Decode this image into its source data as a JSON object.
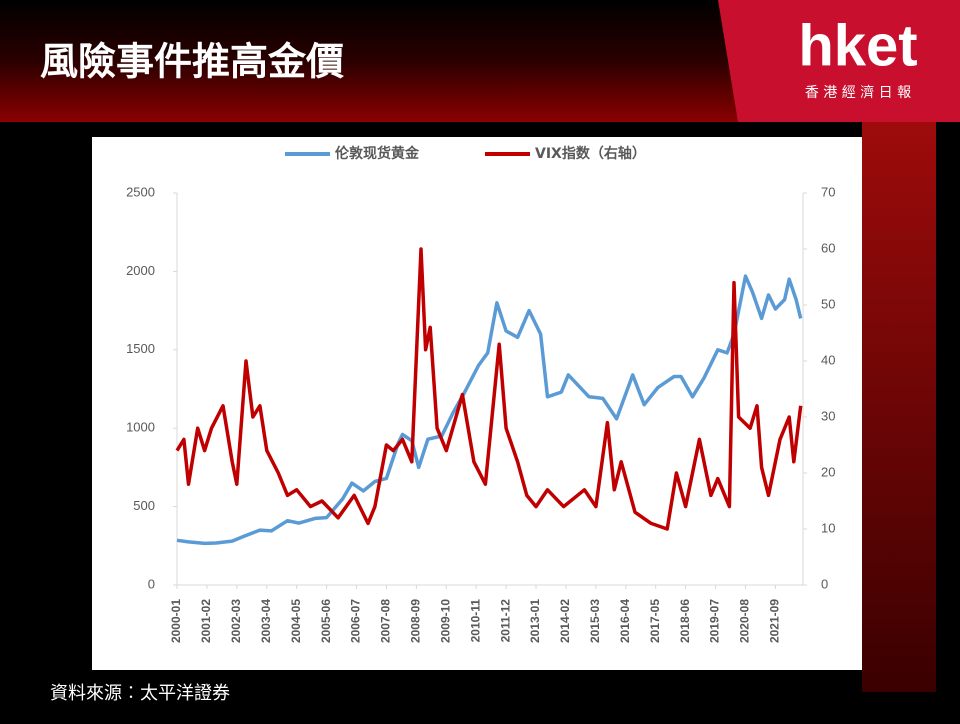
{
  "header": {
    "title": "風險事件推高金價",
    "logo": "hket",
    "logo_sub": "香 港 經 濟 日 報"
  },
  "source": "資料來源︰太平洋證券",
  "chart_data": {
    "type": "line",
    "xlim": [
      "2000-01",
      "2022-09"
    ],
    "xticks": [
      "2000-01",
      "2001-02",
      "2002-03",
      "2003-04",
      "2004-05",
      "2005-06",
      "2006-07",
      "2007-08",
      "2008-09",
      "2009-10",
      "2010-11",
      "2011-12",
      "2013-01",
      "2014-02",
      "2015-03",
      "2016-04",
      "2017-05",
      "2018-06",
      "2019-07",
      "2020-08",
      "2021-09"
    ],
    "ylim": [
      0,
      2500
    ],
    "yticks": [
      0,
      500,
      1000,
      1500,
      2000,
      2500
    ],
    "y2lim": [
      0,
      70
    ],
    "y2ticks": [
      0,
      10,
      20,
      30,
      40,
      50,
      60,
      70
    ],
    "grid": false,
    "legend": "top",
    "series": [
      {
        "name": "伦敦现货黄金",
        "color": "#5b9bd5",
        "axis": "y",
        "x": [
          "2000-01",
          "2000-06",
          "2001-01",
          "2001-06",
          "2002-01",
          "2002-06",
          "2003-01",
          "2003-06",
          "2004-01",
          "2004-06",
          "2005-01",
          "2005-06",
          "2006-01",
          "2006-05",
          "2006-10",
          "2007-03",
          "2007-08",
          "2008-01",
          "2008-03",
          "2008-07",
          "2008-10",
          "2009-02",
          "2009-08",
          "2010-01",
          "2010-06",
          "2010-12",
          "2011-04",
          "2011-08",
          "2011-12",
          "2012-05",
          "2012-10",
          "2013-03",
          "2013-06",
          "2013-12",
          "2014-03",
          "2014-12",
          "2015-06",
          "2015-12",
          "2016-07",
          "2016-12",
          "2017-06",
          "2018-01",
          "2018-04",
          "2018-09",
          "2019-02",
          "2019-08",
          "2019-12",
          "2020-03",
          "2020-08",
          "2020-11",
          "2021-03",
          "2021-06",
          "2021-09",
          "2022-01",
          "2022-03",
          "2022-06",
          "2022-08"
        ],
        "values": [
          285,
          275,
          265,
          268,
          280,
          310,
          350,
          345,
          410,
          395,
          425,
          430,
          550,
          650,
          600,
          660,
          680,
          900,
          960,
          920,
          750,
          930,
          950,
          1100,
          1230,
          1400,
          1480,
          1800,
          1620,
          1580,
          1750,
          1600,
          1200,
          1230,
          1340,
          1200,
          1190,
          1060,
          1340,
          1150,
          1260,
          1330,
          1330,
          1200,
          1320,
          1500,
          1480,
          1600,
          1970,
          1870,
          1700,
          1850,
          1760,
          1820,
          1950,
          1820,
          1700
        ]
      },
      {
        "name": "VIX指数（右轴）",
        "color": "#c00000",
        "axis": "y2",
        "x": [
          "2000-01",
          "2000-04",
          "2000-06",
          "2000-10",
          "2001-01",
          "2001-04",
          "2001-09",
          "2002-01",
          "2002-03",
          "2002-07",
          "2002-10",
          "2003-01",
          "2003-04",
          "2003-09",
          "2004-01",
          "2004-05",
          "2004-11",
          "2005-04",
          "2005-11",
          "2006-06",
          "2006-12",
          "2007-03",
          "2007-08",
          "2007-11",
          "2008-03",
          "2008-07",
          "2008-11",
          "2009-01",
          "2009-03",
          "2009-06",
          "2009-10",
          "2010-05",
          "2010-10",
          "2011-03",
          "2011-09",
          "2011-12",
          "2012-05",
          "2012-09",
          "2013-01",
          "2013-06",
          "2014-01",
          "2014-10",
          "2015-03",
          "2015-08",
          "2015-11",
          "2016-02",
          "2016-08",
          "2017-03",
          "2017-10",
          "2018-02",
          "2018-06",
          "2018-12",
          "2019-05",
          "2019-08",
          "2020-01",
          "2020-03",
          "2020-05",
          "2020-10",
          "2021-01",
          "2021-03",
          "2021-06",
          "2021-11",
          "2022-03",
          "2022-05",
          "2022-08"
        ],
        "values": [
          24,
          26,
          18,
          28,
          24,
          28,
          32,
          22,
          18,
          40,
          30,
          32,
          24,
          20,
          16,
          17,
          14,
          15,
          12,
          16,
          11,
          14,
          25,
          24,
          26,
          22,
          60,
          42,
          46,
          28,
          24,
          34,
          22,
          18,
          43,
          28,
          22,
          16,
          14,
          17,
          14,
          17,
          14,
          29,
          17,
          22,
          13,
          11,
          10,
          20,
          14,
          26,
          16,
          19,
          14,
          54,
          30,
          28,
          32,
          21,
          16,
          26,
          30,
          22,
          32
        ]
      }
    ]
  }
}
